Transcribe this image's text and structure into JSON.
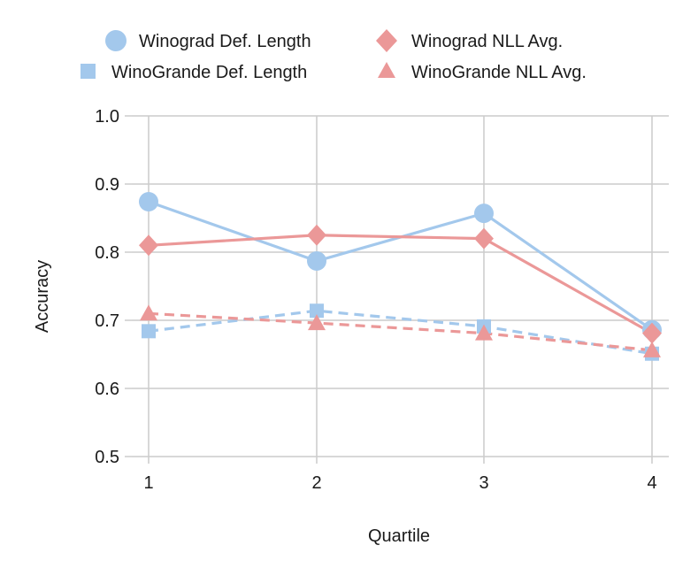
{
  "chart_data": {
    "type": "line",
    "title": "",
    "xlabel": "Quartile",
    "ylabel": "Accuracy",
    "categories": [
      "1",
      "2",
      "3",
      "4"
    ],
    "ylim": [
      0.5,
      1.0
    ],
    "yticks": [
      "0.5",
      "0.6",
      "0.7",
      "0.8",
      "0.9",
      "1.0"
    ],
    "grid": true,
    "legend_position": "top-center",
    "series": [
      {
        "name": "Winograd Def. Length",
        "marker": "circle",
        "line_style": "solid",
        "color": "#a3c8ec",
        "values": [
          0.874,
          0.787,
          0.857,
          0.686
        ]
      },
      {
        "name": "WinoGrande Def. Length",
        "marker": "square",
        "line_style": "dashed",
        "color": "#a3c8ec",
        "values": [
          0.684,
          0.714,
          0.691,
          0.651
        ]
      },
      {
        "name": "Winograd NLL Avg.",
        "marker": "diamond",
        "line_style": "solid",
        "color": "#eb9898",
        "values": [
          0.81,
          0.825,
          0.82,
          0.681
        ]
      },
      {
        "name": "WinoGrande NLL Avg.",
        "marker": "triangle",
        "line_style": "dashed",
        "color": "#eb9898",
        "values": [
          0.71,
          0.696,
          0.681,
          0.656
        ]
      }
    ]
  }
}
